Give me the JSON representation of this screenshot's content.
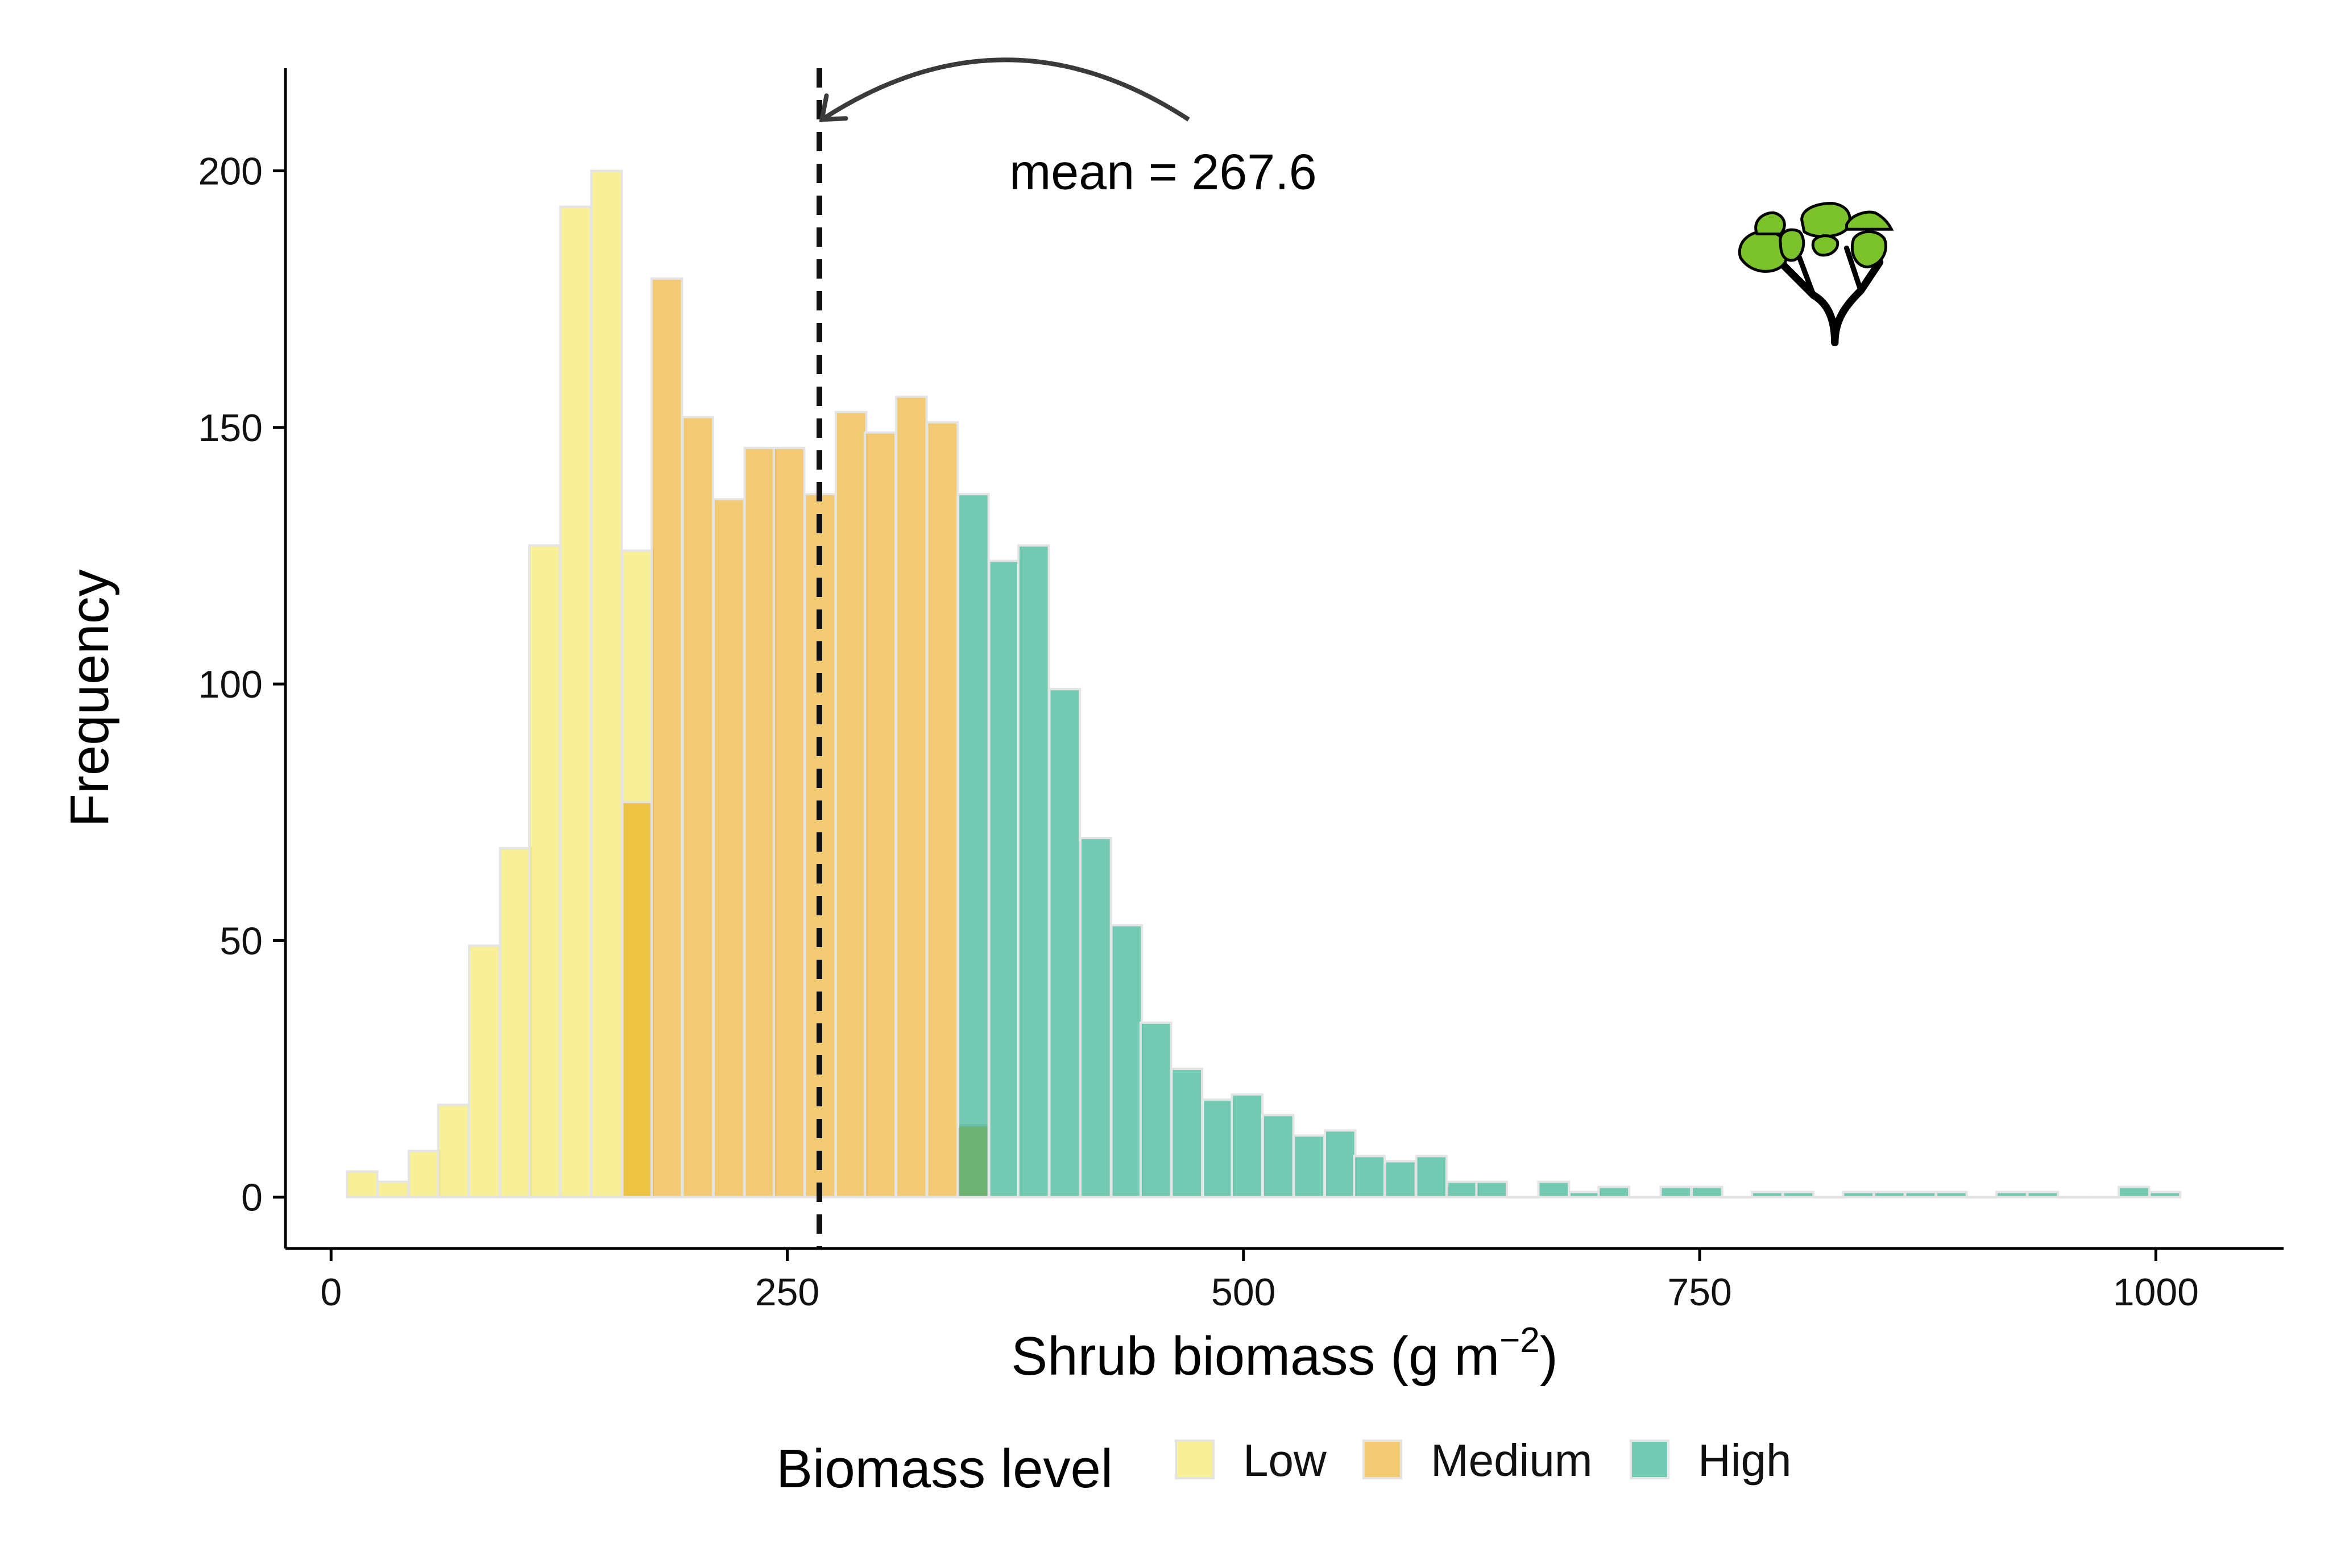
{
  "chart_data": {
    "type": "bar",
    "subtype": "overlapping histogram",
    "title": "",
    "xlabel": "Shrub biomass (g m",
    "xlabel_superscript": "−2",
    "xlabel_close": ")",
    "ylabel": "Frequency",
    "xlim": [
      -25,
      1070
    ],
    "ylim": [
      -10,
      220
    ],
    "x_ticks": [
      0,
      250,
      500,
      750,
      1000
    ],
    "y_ticks": [
      0,
      50,
      100,
      150,
      200
    ],
    "grid": false,
    "legend_position": "bottom",
    "bin_width": 16.7,
    "series": [
      {
        "name": "Low",
        "color": "#F0E442",
        "bins": [
          {
            "x": 17,
            "count": 5
          },
          {
            "x": 34,
            "count": 3
          },
          {
            "x": 51,
            "count": 9
          },
          {
            "x": 67,
            "count": 18
          },
          {
            "x": 84,
            "count": 49
          },
          {
            "x": 101,
            "count": 68
          },
          {
            "x": 117,
            "count": 127
          },
          {
            "x": 134,
            "count": 193
          },
          {
            "x": 151,
            "count": 200
          },
          {
            "x": 168,
            "count": 126
          }
        ]
      },
      {
        "name": "Medium",
        "color": "#E69F00",
        "bins": [
          {
            "x": 168,
            "count": 77
          },
          {
            "x": 184,
            "count": 179
          },
          {
            "x": 201,
            "count": 152
          },
          {
            "x": 218,
            "count": 136
          },
          {
            "x": 235,
            "count": 146
          },
          {
            "x": 251,
            "count": 146
          },
          {
            "x": 268,
            "count": 137
          },
          {
            "x": 285,
            "count": 153
          },
          {
            "x": 301,
            "count": 149
          },
          {
            "x": 318,
            "count": 156
          },
          {
            "x": 335,
            "count": 151
          },
          {
            "x": 352,
            "count": 14
          }
        ]
      },
      {
        "name": "High",
        "color": "#009E73",
        "bins": [
          {
            "x": 352,
            "count": 137
          },
          {
            "x": 369,
            "count": 124
          },
          {
            "x": 385,
            "count": 127
          },
          {
            "x": 402,
            "count": 99
          },
          {
            "x": 419,
            "count": 70
          },
          {
            "x": 436,
            "count": 53
          },
          {
            "x": 452,
            "count": 34
          },
          {
            "x": 469,
            "count": 25
          },
          {
            "x": 486,
            "count": 19
          },
          {
            "x": 502,
            "count": 20
          },
          {
            "x": 519,
            "count": 16
          },
          {
            "x": 536,
            "count": 12
          },
          {
            "x": 553,
            "count": 13
          },
          {
            "x": 569,
            "count": 8
          },
          {
            "x": 586,
            "count": 7
          },
          {
            "x": 603,
            "count": 8
          },
          {
            "x": 620,
            "count": 3
          },
          {
            "x": 636,
            "count": 3
          },
          {
            "x": 653,
            "count": 0
          },
          {
            "x": 670,
            "count": 3
          },
          {
            "x": 687,
            "count": 1
          },
          {
            "x": 703,
            "count": 2
          },
          {
            "x": 720,
            "count": 0
          },
          {
            "x": 737,
            "count": 2
          },
          {
            "x": 754,
            "count": 2
          },
          {
            "x": 770,
            "count": 0
          },
          {
            "x": 787,
            "count": 1
          },
          {
            "x": 804,
            "count": 1
          },
          {
            "x": 821,
            "count": 0
          },
          {
            "x": 837,
            "count": 1
          },
          {
            "x": 854,
            "count": 1
          },
          {
            "x": 871,
            "count": 1
          },
          {
            "x": 888,
            "count": 1
          },
          {
            "x": 904,
            "count": 0
          },
          {
            "x": 921,
            "count": 1
          },
          {
            "x": 938,
            "count": 1
          },
          {
            "x": 955,
            "count": 0
          },
          {
            "x": 971,
            "count": 0
          },
          {
            "x": 988,
            "count": 2
          },
          {
            "x": 1005,
            "count": 1
          }
        ]
      }
    ],
    "mean_line": {
      "x": 267.6,
      "style": "dashed",
      "color": "#000000"
    },
    "annotation": {
      "text": "mean = 267.6",
      "arrow_from_x": 470,
      "arrow_from_y": 210,
      "arrow_to_x": 269,
      "arrow_to_y": 210
    },
    "legend": {
      "title": "Biomass level",
      "entries": [
        "Low",
        "Medium",
        "High"
      ]
    },
    "icon": "shrub-icon"
  }
}
